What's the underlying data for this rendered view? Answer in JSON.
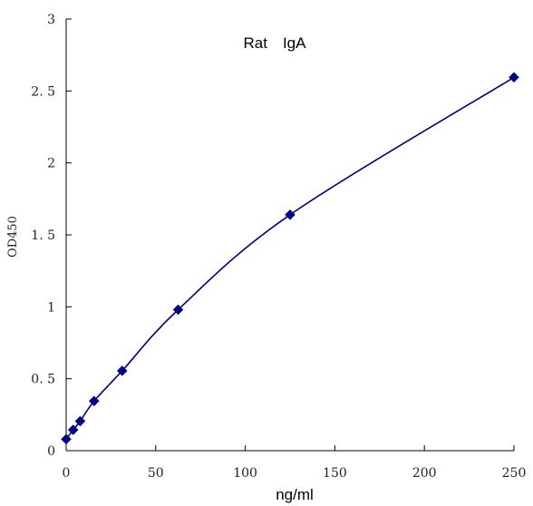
{
  "chart_data": {
    "type": "line",
    "title": "Rat　IgA",
    "xlabel": "ng/ml",
    "ylabel": "OD450",
    "xlim": [
      0,
      250
    ],
    "ylim": [
      0,
      3
    ],
    "xticks": [
      0,
      50,
      100,
      150,
      200,
      250
    ],
    "yticks": [
      0,
      0.5,
      1,
      1.5,
      2,
      2.5,
      3
    ],
    "xtick_labels": [
      "0",
      "50",
      "100",
      "150",
      "200",
      "250"
    ],
    "ytick_labels": [
      "0",
      "0. 5",
      "1",
      "1. 5",
      "2",
      "2. 5",
      "3"
    ],
    "grid": false,
    "marker": "diamond",
    "colors": {
      "series": "#000080",
      "axis": "#000000"
    },
    "series": [
      {
        "x": [
          0,
          3.9,
          7.8,
          15.6,
          31.25,
          62.5,
          125,
          250
        ],
        "y": [
          0.08,
          0.145,
          0.205,
          0.345,
          0.555,
          0.98,
          1.64,
          2.595
        ]
      }
    ]
  }
}
